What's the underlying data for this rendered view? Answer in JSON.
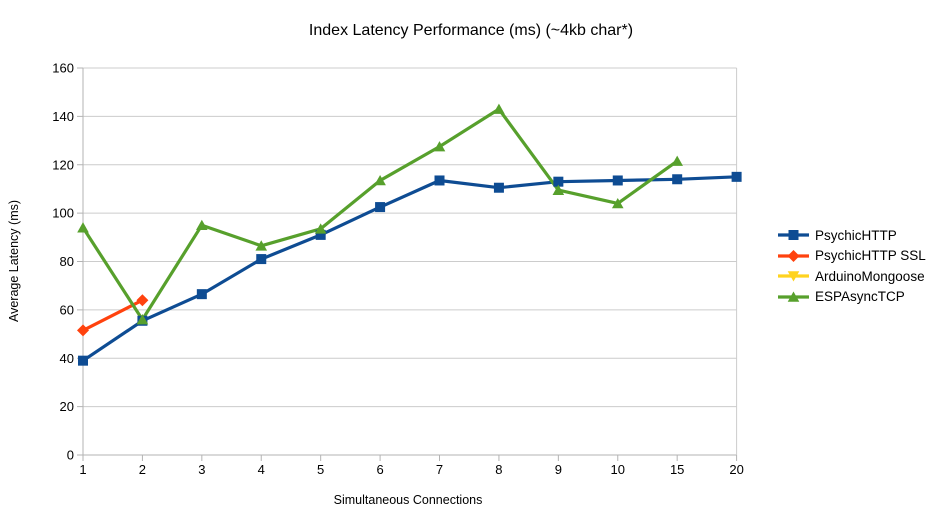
{
  "chart_data": {
    "type": "line",
    "title": "Index Latency Performance (ms) (~4kb char*)",
    "xlabel": "Simultaneous Connections",
    "ylabel": "Average Latency (ms)",
    "categories": [
      "1",
      "2",
      "3",
      "4",
      "5",
      "6",
      "7",
      "8",
      "9",
      "10",
      "15",
      "20"
    ],
    "ylim": [
      0,
      160
    ],
    "yticks": [
      0,
      20,
      40,
      60,
      80,
      100,
      120,
      140,
      160
    ],
    "grid": "horizontal-only",
    "legend_position": "right",
    "axis_color": "#b3b3b3",
    "gridline_color": "#cccccc",
    "text_color": "#000000",
    "series": [
      {
        "name": "PsychicHTTP",
        "color": "#0e4c93",
        "marker": "square",
        "values": [
          39,
          55.5,
          66.5,
          81,
          91,
          102.5,
          113.5,
          110.5,
          113,
          113.5,
          114,
          115
        ]
      },
      {
        "name": "PsychicHTTP SSL",
        "color": "#ff420e",
        "marker": "diamond",
        "values": [
          51.5,
          64,
          null,
          null,
          null,
          null,
          null,
          null,
          null,
          null,
          null,
          null
        ]
      },
      {
        "name": "ArduinoMongoose",
        "color": "#ffd320",
        "marker": "triangle-down",
        "values": [
          null,
          null,
          null,
          null,
          null,
          null,
          null,
          null,
          null,
          null,
          null,
          null
        ]
      },
      {
        "name": "ESPAsyncTCP",
        "color": "#57a02c",
        "marker": "triangle-up",
        "values": [
          94,
          56,
          95,
          86.5,
          93.5,
          113.5,
          127.5,
          143,
          109.5,
          104,
          121.5,
          null
        ]
      }
    ]
  }
}
